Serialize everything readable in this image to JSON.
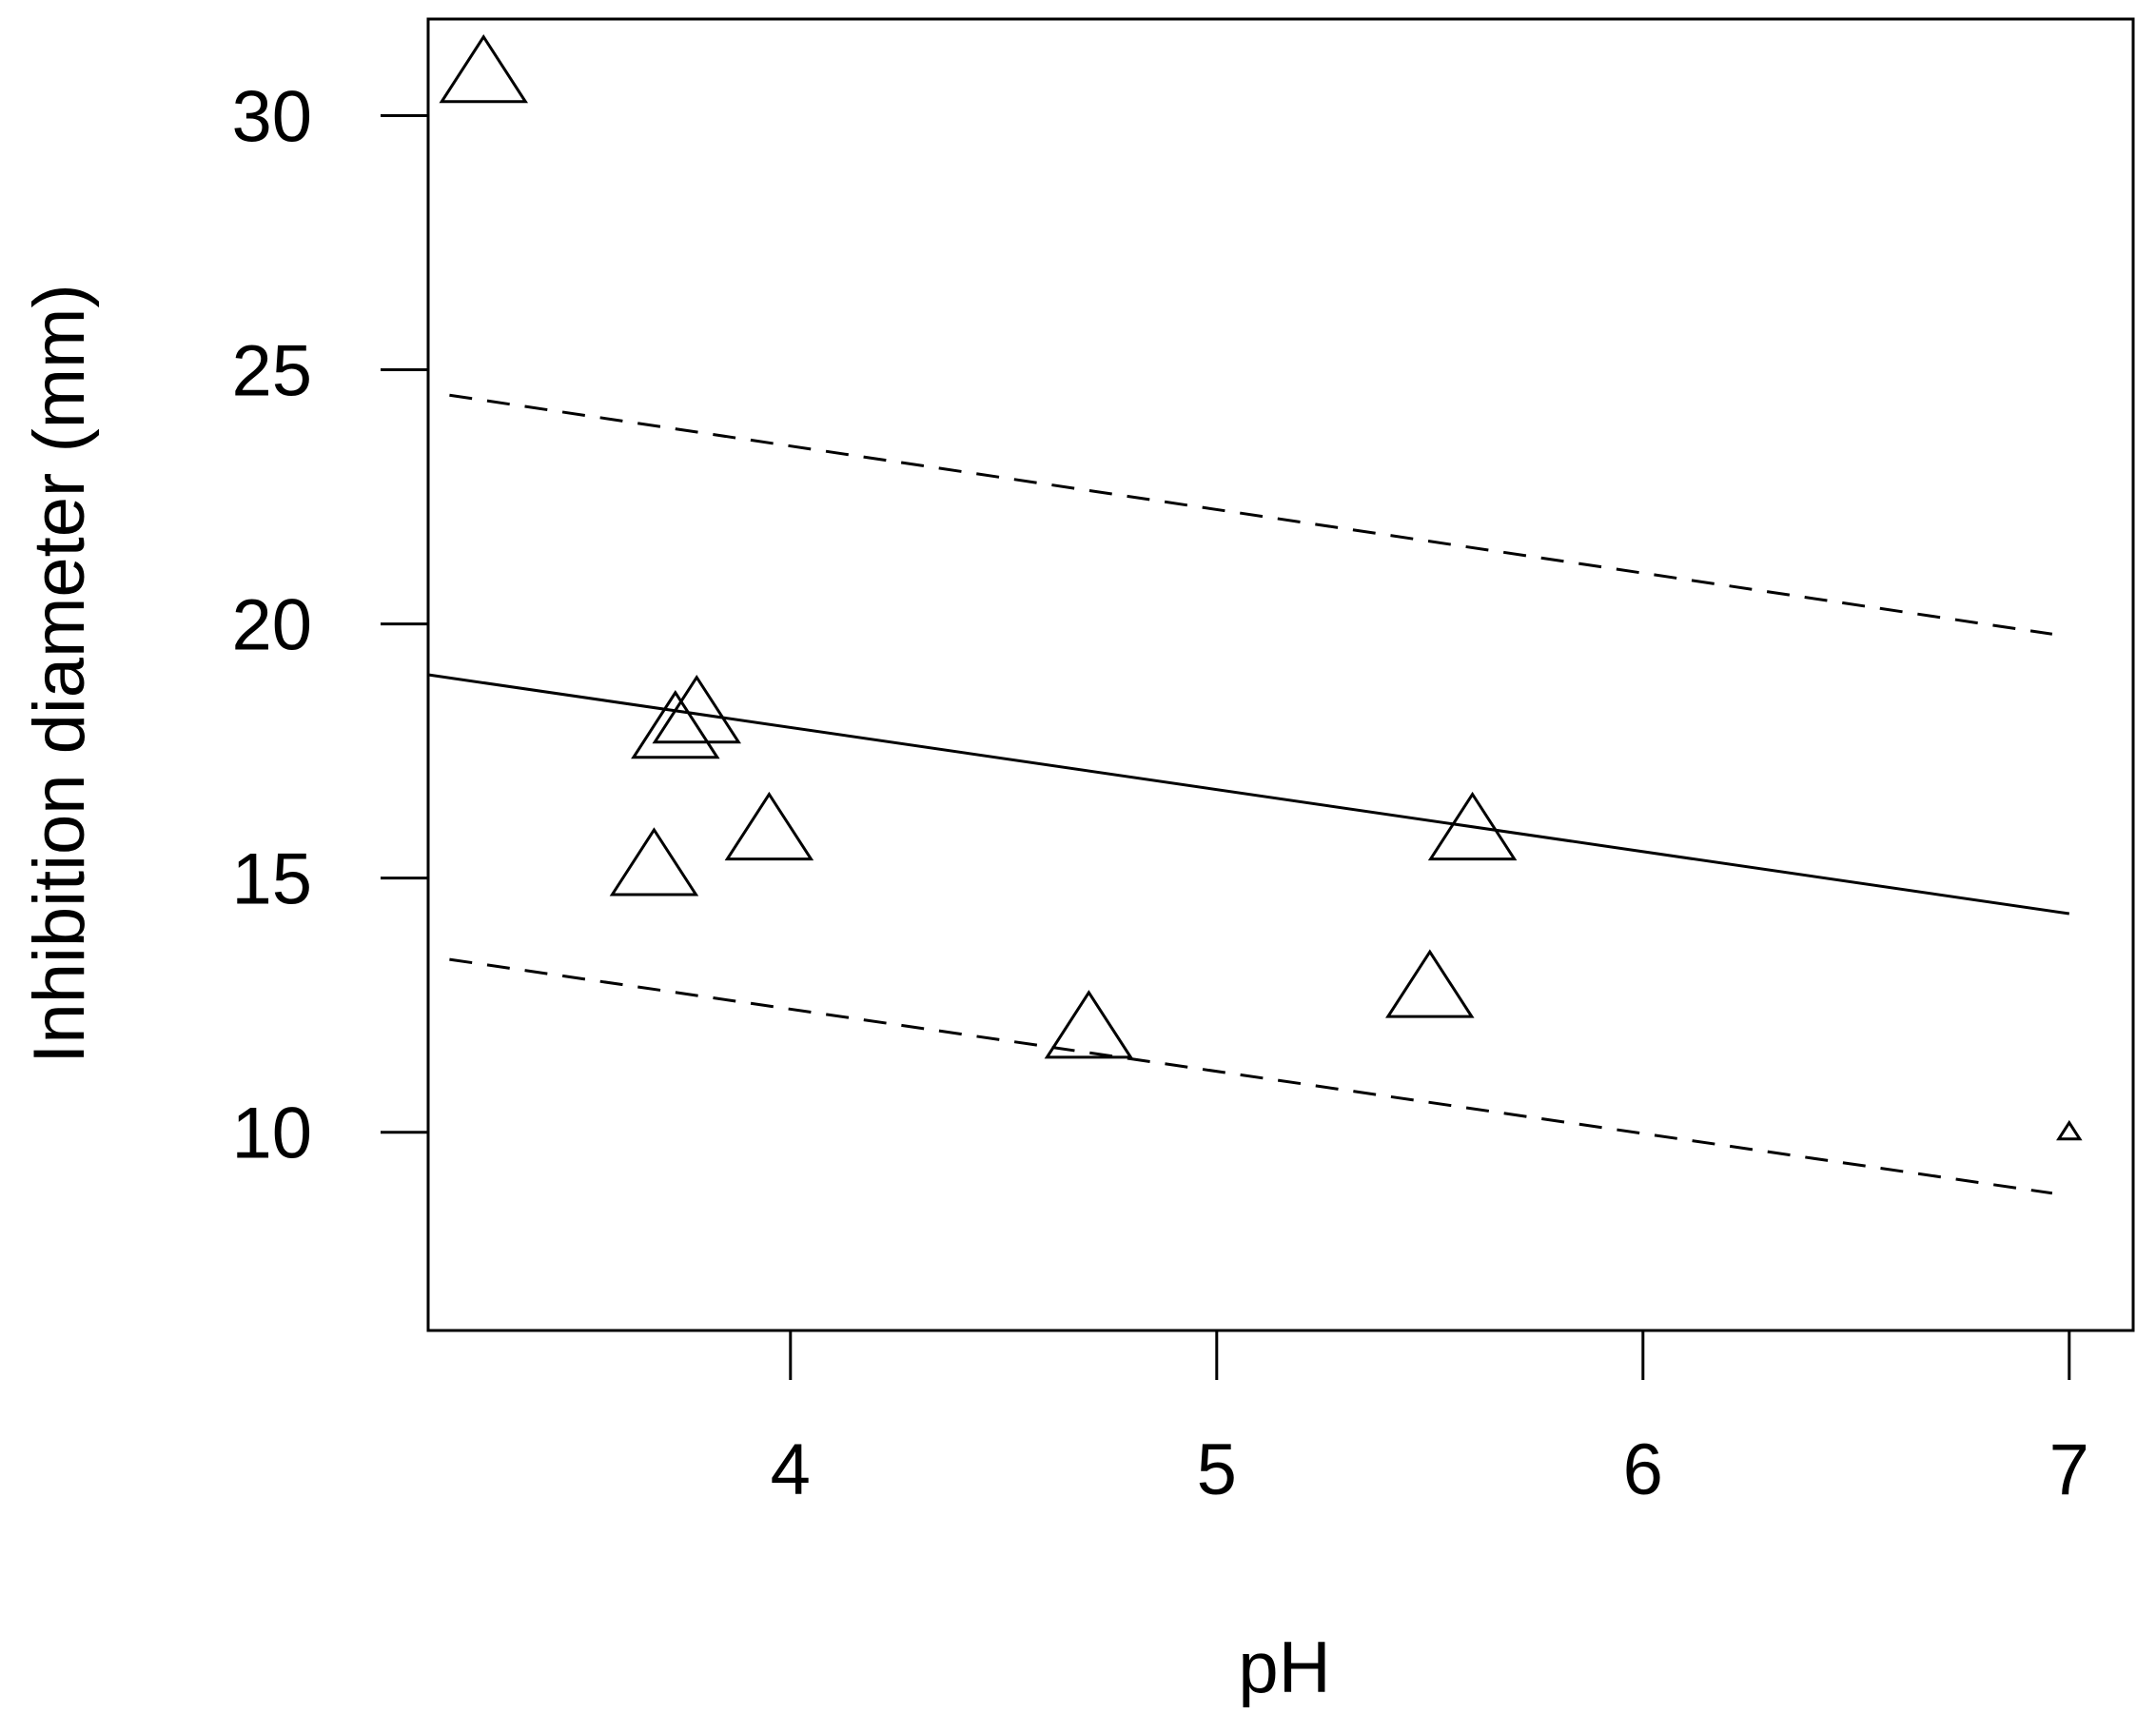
{
  "chart_data": {
    "type": "scatter",
    "xlabel": "pH",
    "ylabel": "Inhibition diameter (mm)",
    "xlim": [
      3.15,
      7.15
    ],
    "ylim": [
      6.1,
      31.9
    ],
    "xticks": [
      4,
      5,
      6,
      7
    ],
    "yticks": [
      10,
      15,
      20,
      25,
      30
    ],
    "grid": false,
    "marker": "open-triangle",
    "points": [
      {
        "x": 3.28,
        "y": 30.8,
        "size": 1.0
      },
      {
        "x": 3.68,
        "y": 15.2,
        "size": 1.0
      },
      {
        "x": 3.73,
        "y": 17.9,
        "size": 1.0
      },
      {
        "x": 3.78,
        "y": 18.2,
        "size": 1.0
      },
      {
        "x": 3.95,
        "y": 15.9,
        "size": 1.0
      },
      {
        "x": 4.7,
        "y": 12.0,
        "size": 1.0
      },
      {
        "x": 5.5,
        "y": 12.8,
        "size": 1.0
      },
      {
        "x": 5.6,
        "y": 15.9,
        "size": 1.0
      },
      {
        "x": 7.0,
        "y": 10.0,
        "size": 0.25
      }
    ],
    "lines": [
      {
        "style": "solid",
        "x": [
          3.15,
          7.0
        ],
        "y": [
          19.0,
          14.3
        ]
      },
      {
        "style": "dashed",
        "x": [
          3.2,
          6.96
        ],
        "y": [
          24.5,
          19.8
        ]
      },
      {
        "style": "dashed",
        "x": [
          3.2,
          6.96
        ],
        "y": [
          13.4,
          8.8
        ]
      }
    ]
  }
}
